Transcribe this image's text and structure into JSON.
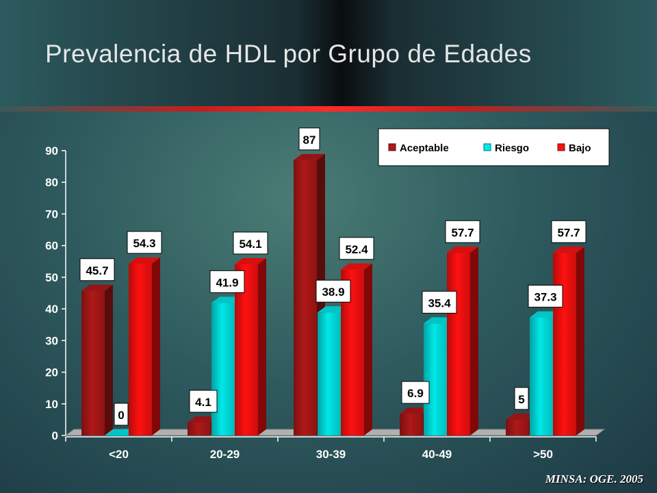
{
  "slide": {
    "title": "Prevalencia de HDL por Grupo de Edades",
    "source": "MINSA: OGE. 2005"
  },
  "colors": {
    "Aceptable": "#b01818",
    "Riesgo": "#00e8e8",
    "Bajo": "#ff1010"
  },
  "chart_data": {
    "type": "bar",
    "categories": [
      "<20",
      "20-29",
      "30-39",
      "40-49",
      ">50"
    ],
    "series": [
      {
        "name": "Aceptable",
        "values": [
          45.7,
          4.1,
          87,
          6.9,
          5
        ]
      },
      {
        "name": "Riesgo",
        "values": [
          0,
          41.9,
          38.9,
          35.4,
          37.3
        ]
      },
      {
        "name": "Bajo",
        "values": [
          54.3,
          54.1,
          52.4,
          57.7,
          57.7
        ]
      }
    ],
    "ylim": [
      0,
      90
    ],
    "yticks": [
      0,
      10,
      20,
      30,
      40,
      50,
      60,
      70,
      80,
      90
    ],
    "legend": "top-right",
    "grid": false
  }
}
